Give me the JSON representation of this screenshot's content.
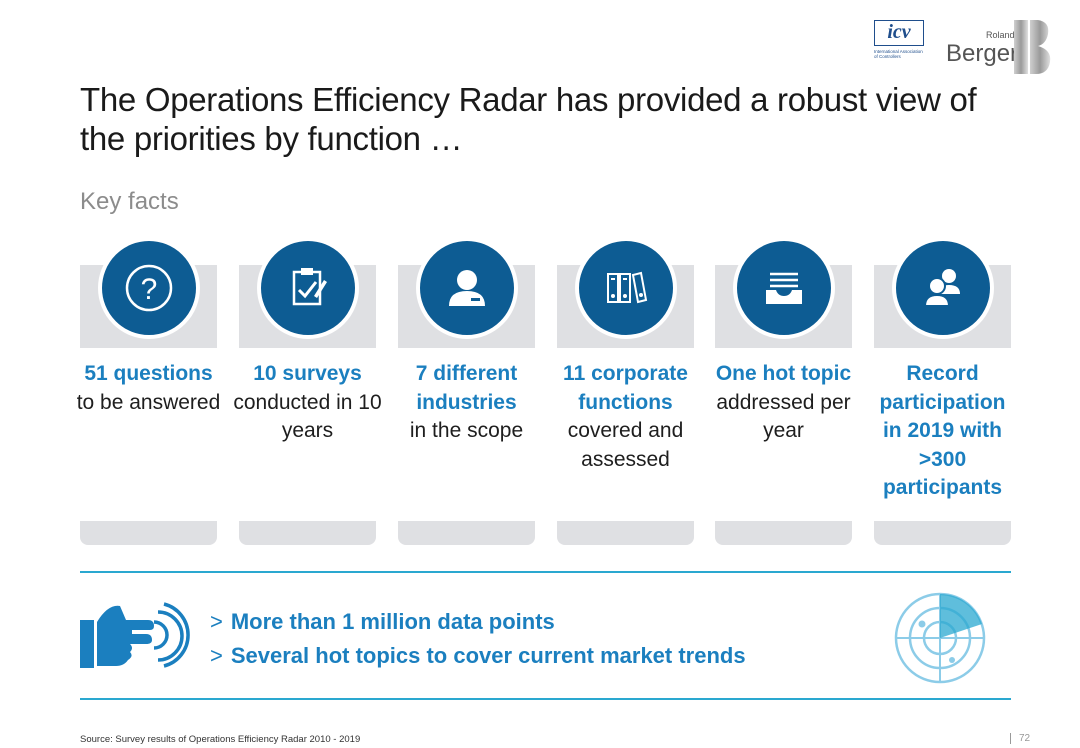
{
  "header": {
    "title": "The Operations Efficiency Radar has provided a robust view of the priorities by function …",
    "subtitle": "Key facts"
  },
  "logos": {
    "icv_text": "icv",
    "icv_sub": "International Association of Controllers",
    "rb_small": "Roland",
    "rb_big": "Berger"
  },
  "cards": [
    {
      "icon": "question-icon",
      "highlight": "51 questions",
      "normal": "to be answered"
    },
    {
      "icon": "clipboard-check-icon",
      "highlight": "10 surveys",
      "normal": "conducted in 10 years"
    },
    {
      "icon": "person-icon",
      "highlight": "7 different industries",
      "normal": "in the scope"
    },
    {
      "icon": "binders-icon",
      "highlight": "11 corporate functions",
      "normal": "covered and assessed"
    },
    {
      "icon": "inbox-tray-icon",
      "highlight": "One hot topic",
      "normal": "addressed per year"
    },
    {
      "icon": "group-icon",
      "highlight": "Record participation in 2019 with >300 participants",
      "normal": ""
    }
  ],
  "bullets": [
    {
      "arrow": ">",
      "text": "More than 1 million data points"
    },
    {
      "arrow": ">",
      "text": "Several hot topics to cover current market trends"
    }
  ],
  "footer": {
    "source": "Source: Survey results of Operations Efficiency Radar 2010 - 2019",
    "page": "72"
  },
  "colors": {
    "accent": "#1b7fbf",
    "circle": "#0d5c93",
    "card_bg": "#dfe0e3",
    "rule": "#2aa8d0"
  }
}
